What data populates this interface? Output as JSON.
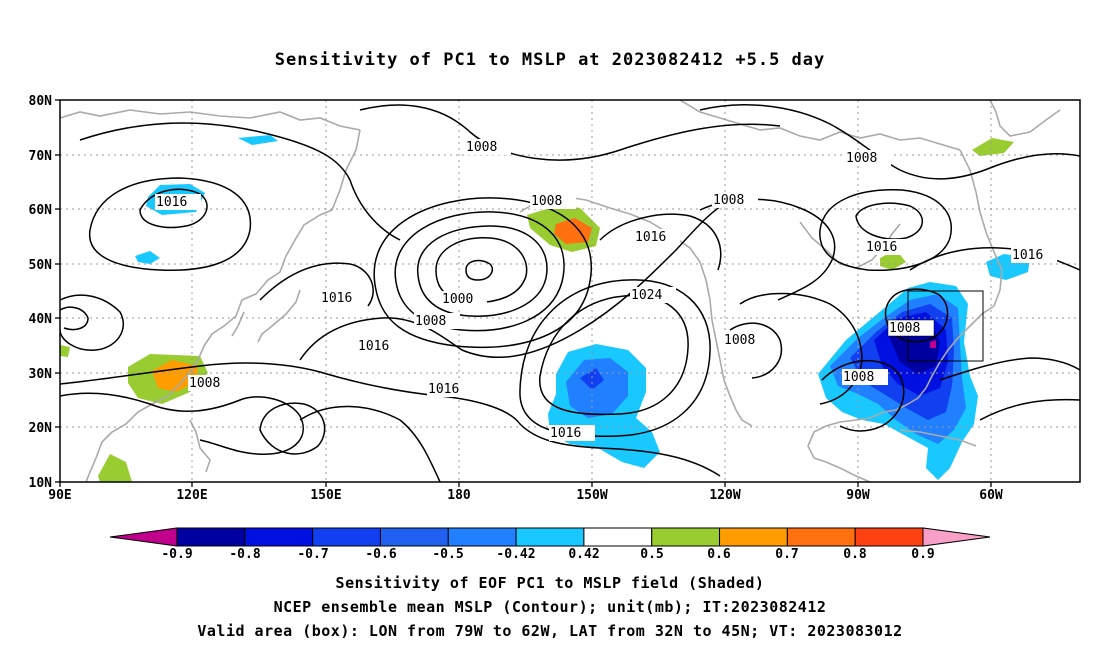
{
  "title": "Sensitivity of PC1 to MSLP at 2023082412 +5.5 day",
  "lat_labels": [
    "80N",
    "70N",
    "60N",
    "50N",
    "40N",
    "30N",
    "20N",
    "10N"
  ],
  "lon_labels": [
    "90E",
    "120E",
    "150E",
    "180",
    "150W",
    "120W",
    "90W",
    "60W"
  ],
  "contour_labels": [
    {
      "text": "1008",
      "name": "contour-label-1008-arctic"
    },
    {
      "text": "1008",
      "name": "contour-label-1008-canada"
    },
    {
      "text": "1016",
      "name": "contour-label-1016-siberia"
    },
    {
      "text": "1008",
      "name": "contour-label-1008-bering"
    },
    {
      "text": "1008",
      "name": "contour-label-1008-alaska"
    },
    {
      "text": "1016",
      "name": "contour-label-1016-gulf-alaska"
    },
    {
      "text": "1016",
      "name": "contour-label-1016-hudson"
    },
    {
      "text": "1016",
      "name": "contour-label-1016-atlantic"
    },
    {
      "text": "1016",
      "name": "contour-label-1016-kamchatka"
    },
    {
      "text": "1000",
      "name": "contour-label-1000-low-center"
    },
    {
      "text": "1024",
      "name": "contour-label-1024-pacific-high"
    },
    {
      "text": "1008",
      "name": "contour-label-1008-low-ring"
    },
    {
      "text": "1008",
      "name": "contour-label-1008-east-us"
    },
    {
      "text": "1016",
      "name": "contour-label-1016-central-pacific"
    },
    {
      "text": "1008",
      "name": "contour-label-1008-mexico"
    },
    {
      "text": "1008",
      "name": "contour-label-1008-gulf"
    },
    {
      "text": "1008",
      "name": "contour-label-1008-china"
    },
    {
      "text": "1016",
      "name": "contour-label-1016-west-pacific"
    },
    {
      "text": "1016",
      "name": "contour-label-1016-subtropical"
    }
  ],
  "colorbar": {
    "labels": [
      "-0.9",
      "-0.8",
      "-0.7",
      "-0.6",
      "-0.5",
      "-0.42",
      "0.42",
      "0.5",
      "0.6",
      "0.7",
      "0.8",
      "0.9"
    ],
    "colors": [
      "#0000a0",
      "#0010e0",
      "#1040f0",
      "#2060f0",
      "#2080ff",
      "#18c8ff",
      "#ffffff",
      "#98cc30",
      "#ff9c00",
      "#ff7010",
      "#ff4010",
      "#f00010"
    ],
    "under_color": "#c0008c",
    "over_color": "#f8a0c8"
  },
  "captions": [
    "Sensitivity of EOF PC1 to MSLP field (Shaded)",
    "NCEP ensemble mean MSLP (Contour); unit(mb); IT:2023082412",
    "Valid area (box): LON from 79W to 62W, LAT from 32N to 45N; VT: 2023083012"
  ],
  "valid_box": {
    "lon_min": -79,
    "lon_max": -62,
    "lat_min": 32,
    "lat_max": 45
  }
}
